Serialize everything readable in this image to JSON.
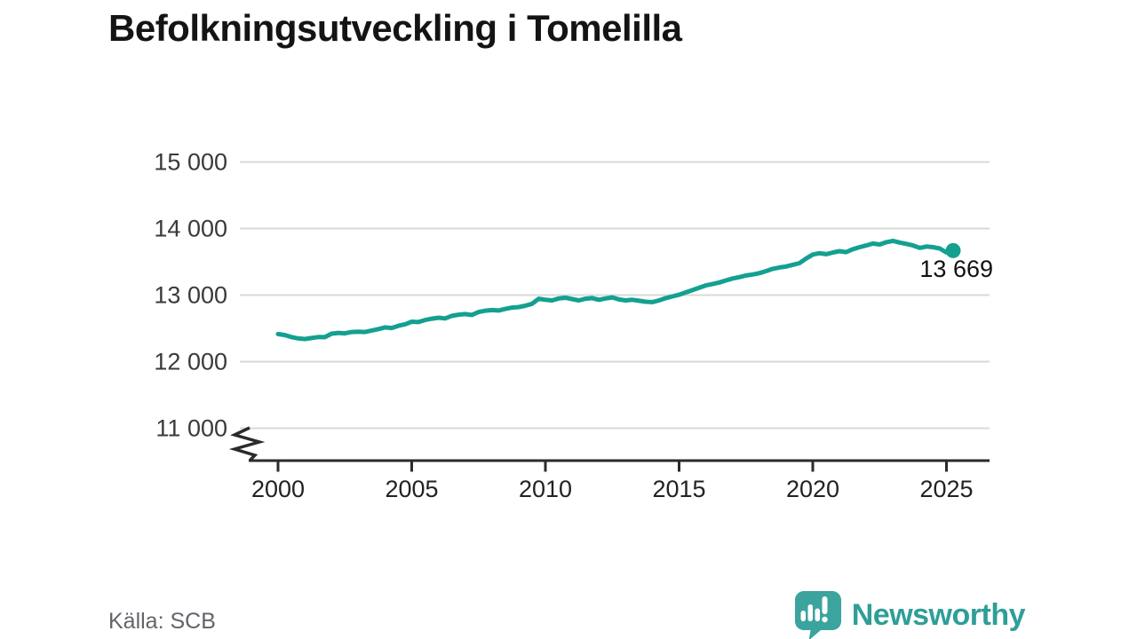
{
  "title": "Befolkningsutveckling i Tomelilla",
  "source": "Källa: SCB",
  "logo": {
    "text": "Newsworthy",
    "icon": "newsworthy-speech-bubble-bar-chart-icon"
  },
  "colors": {
    "line": "#14a090",
    "grid": "#d9d9d9",
    "axis": "#2b2b2b",
    "y_tick_text": "#3a3a3a",
    "x_tick_text": "#222222",
    "annotation_text": "#111111",
    "title_text": "#141414",
    "source_text": "#63636b",
    "logo_bubble": "#3ba49e",
    "logo_glyphs": "#ffffff",
    "logo_text": "#2f9e98"
  },
  "chart_data": {
    "type": "line",
    "title": "Befolkningsutveckling i Tomelilla",
    "xlabel": "",
    "ylabel": "",
    "grid": "horizontal",
    "legend_position": "none",
    "axis_break_at_bottom": true,
    "xlim": [
      1998.9,
      2026.7
    ],
    "ylim": [
      10800,
      15300
    ],
    "x_ticks": [
      2000,
      2005,
      2010,
      2015,
      2020,
      2025
    ],
    "x_tick_labels": [
      "2000",
      "2005",
      "2010",
      "2015",
      "2020",
      "2025"
    ],
    "y_ticks": [
      11000,
      12000,
      13000,
      14000,
      15000
    ],
    "y_tick_labels": [
      "11 000",
      "12 000",
      "13 000",
      "14 000",
      "15 000"
    ],
    "x_start": 2000,
    "x_step": 0.25,
    "values": [
      12415,
      12400,
      12370,
      12350,
      12340,
      12355,
      12370,
      12368,
      12420,
      12432,
      12425,
      12445,
      12450,
      12445,
      12468,
      12490,
      12515,
      12505,
      12538,
      12562,
      12600,
      12595,
      12625,
      12645,
      12660,
      12650,
      12688,
      12705,
      12715,
      12702,
      12745,
      12765,
      12775,
      12768,
      12792,
      12812,
      12820,
      12840,
      12870,
      12945,
      12930,
      12920,
      12950,
      12960,
      12940,
      12920,
      12945,
      12955,
      12930,
      12950,
      12965,
      12935,
      12920,
      12930,
      12915,
      12900,
      12895,
      12920,
      12955,
      12980,
      13005,
      13040,
      13075,
      13110,
      13145,
      13165,
      13190,
      13220,
      13250,
      13270,
      13295,
      13310,
      13330,
      13360,
      13395,
      13415,
      13430,
      13455,
      13480,
      13550,
      13610,
      13630,
      13615,
      13640,
      13660,
      13645,
      13690,
      13720,
      13745,
      13775,
      13760,
      13795,
      13815,
      13790,
      13770,
      13745,
      13710,
      13730,
      13720,
      13700,
      13640,
      13669
    ],
    "last_point": {
      "x": 2025.25,
      "value": 13669,
      "label": "13 669",
      "marker": "dot"
    }
  }
}
